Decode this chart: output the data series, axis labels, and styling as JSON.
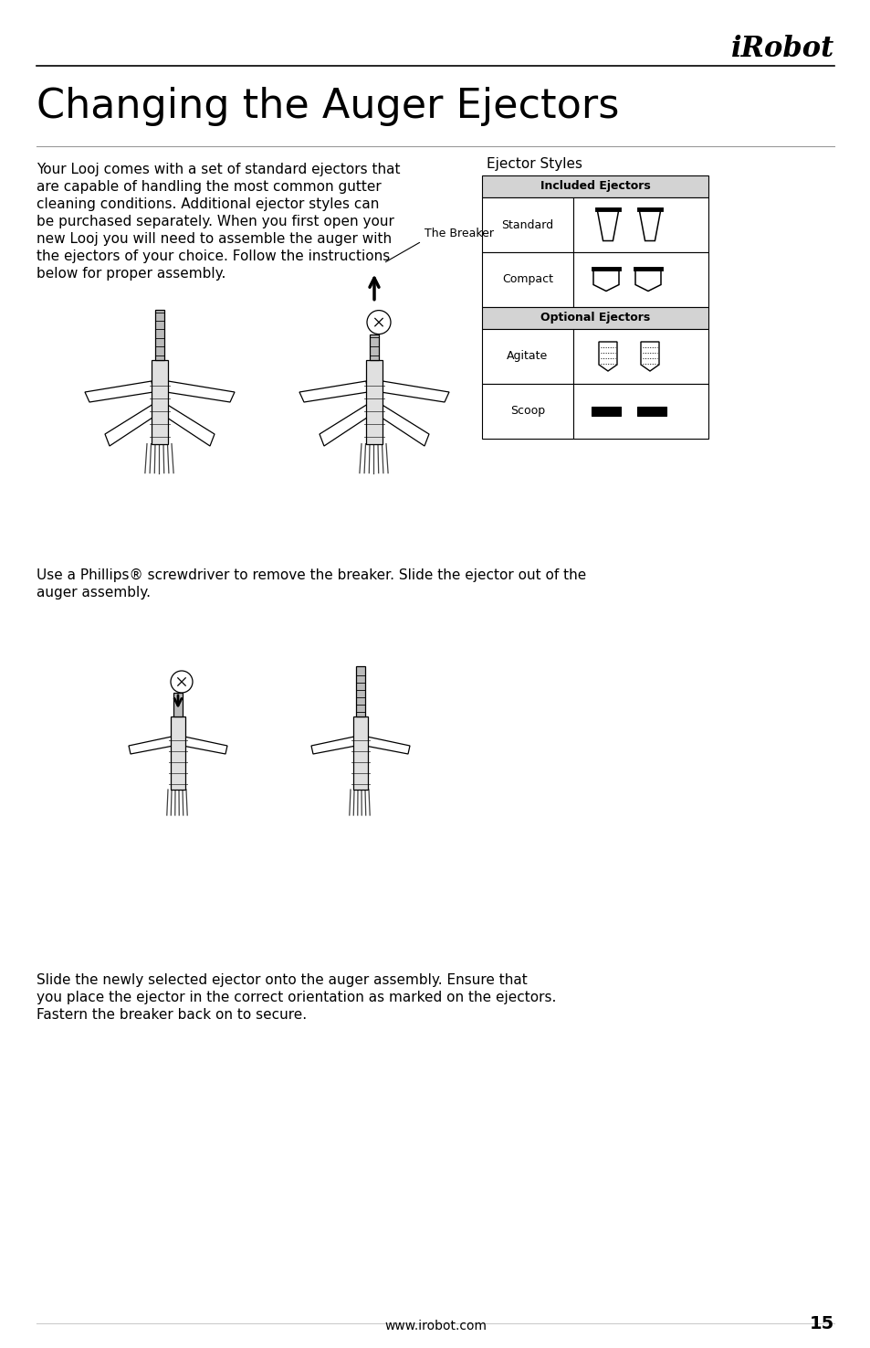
{
  "title": "Changing the Auger Ejectors",
  "logo_text": "iRobot",
  "body_text_1": "Your Looj comes with a set of standard ejectors that\nare capable of handling the most common gutter\ncleaning conditions. Additional ejector styles can\nbe purchased separately. When you first open your\nnew Looj you will need to assemble the auger with\nthe ejectors of your choice. Follow the instructions\nbelow for proper assembly.",
  "ejector_styles_title": "Ejector Styles",
  "included_header": "Included Ejectors",
  "optional_header": "Optional Ejectors",
  "ejector_labels": [
    "Standard",
    "Compact",
    "Agitate",
    "Scoop"
  ],
  "caption_breaker": "The Breaker",
  "body_text_2": "Use a Phillips® screwdriver to remove the breaker. Slide the ejector out of the\nauger assembly.",
  "body_text_3": "Slide the newly selected ejector onto the auger assembly. Ensure that\nyou place the ejector in the correct orientation as marked on the ejectors.\nFastern the breaker back on to secure.",
  "footer_url": "www.irobot.com",
  "footer_page": "15",
  "bg_color": "#ffffff",
  "text_color": "#000000",
  "table_header_bg": "#d3d3d3",
  "title_fontsize": 32,
  "body_fontsize": 11,
  "logo_fontsize": 22,
  "footer_fontsize": 10
}
